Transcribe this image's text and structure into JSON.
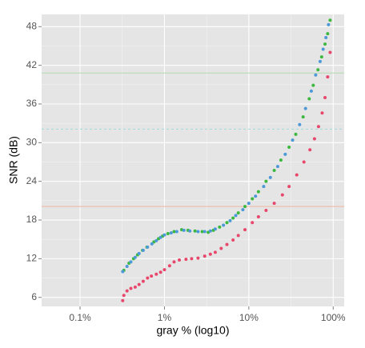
{
  "chart_data": {
    "type": "scatter",
    "xlabel": "gray % (log10)",
    "ylabel": "SNR (dB)",
    "xlog": true,
    "grid": true,
    "xlim": [
      0.035,
      135
    ],
    "ylim": [
      4.6,
      49.9
    ],
    "xticks": [
      {
        "value": 0.1,
        "label": "0.1%"
      },
      {
        "value": 1,
        "label": "1%"
      },
      {
        "value": 10,
        "label": "10%"
      },
      {
        "value": 100,
        "label": "100%"
      }
    ],
    "yticks": [
      6,
      12,
      18,
      24,
      30,
      36,
      42,
      48
    ],
    "hlines": [
      {
        "value": 40.8,
        "color": "#b7dcb7",
        "style": "solid"
      },
      {
        "value": 32.1,
        "color": "#a6dcdc",
        "style": "dashed"
      },
      {
        "value": 20.1,
        "color": "#efc0ad",
        "style": "solid"
      }
    ],
    "series": [
      {
        "color": "#e8476c",
        "x": [
          0.32,
          0.33,
          0.36,
          0.4,
          0.45,
          0.5,
          0.56,
          0.63,
          0.7,
          0.8,
          0.9,
          1,
          1.15,
          1.3,
          1.5,
          1.8,
          2.1,
          2.5,
          3,
          3.5,
          4,
          4.7,
          5.5,
          6.5,
          7.5,
          9,
          11,
          13,
          16,
          20,
          25,
          30,
          37,
          45,
          53,
          60,
          67,
          74,
          80,
          86,
          92
        ],
        "values": [
          5.5,
          6.3,
          7,
          7.4,
          7.6,
          8,
          8.5,
          9,
          9.3,
          9.6,
          9.9,
          10.3,
          10.9,
          11.5,
          11.8,
          11.9,
          12,
          12.1,
          12.4,
          12.7,
          13,
          13.6,
          14.2,
          14.9,
          15.6,
          16.5,
          17.6,
          18.5,
          19.5,
          20.6,
          21.9,
          23.2,
          25,
          27,
          28.9,
          30.6,
          32.5,
          34.6,
          37,
          40.2,
          44
        ]
      },
      {
        "color": "#3cb83f",
        "x": [
          0.33,
          0.38,
          0.43,
          0.48,
          0.55,
          0.62,
          0.75,
          0.85,
          0.95,
          1.1,
          1.3,
          1.6,
          1.9,
          2.3,
          2.8,
          3.3,
          3.8,
          4.5,
          5.5,
          6.5,
          7.5,
          9,
          11,
          13,
          16,
          20,
          24,
          30,
          36,
          44,
          52,
          58,
          66,
          73,
          80,
          86,
          92
        ],
        "values": [
          10.2,
          11.3,
          12,
          12.6,
          13.3,
          13.8,
          14.6,
          15.1,
          15.5,
          15.9,
          16.2,
          16.5,
          16.4,
          16.3,
          16.2,
          16.1,
          16.4,
          16.9,
          17.6,
          18.3,
          19.1,
          20.1,
          21.3,
          22.4,
          24,
          25.7,
          27.3,
          29.3,
          31.3,
          34,
          36.8,
          38.9,
          41.3,
          43.3,
          45.3,
          46.9,
          49
        ]
      },
      {
        "color": "#4c98d8",
        "x": [
          0.32,
          0.36,
          0.4,
          0.45,
          0.5,
          0.56,
          0.63,
          0.71,
          0.8,
          0.9,
          1,
          1.2,
          1.4,
          1.7,
          2,
          2.5,
          3,
          3.5,
          4,
          5,
          6,
          7,
          8.5,
          10,
          12,
          15,
          18,
          22,
          27,
          33,
          40,
          47,
          55,
          62,
          70,
          76,
          82,
          88
        ],
        "values": [
          10,
          10.8,
          11.5,
          12.2,
          12.8,
          13.3,
          13.8,
          14.3,
          14.8,
          15.3,
          15.7,
          16,
          16.2,
          16.4,
          16.3,
          16.2,
          16.2,
          16.3,
          16.6,
          17.2,
          17.9,
          18.7,
          19.6,
          20.6,
          21.7,
          23.2,
          24.6,
          26.3,
          28.2,
          30.4,
          32.8,
          35.3,
          38,
          40.5,
          42.6,
          44.5,
          46.3,
          48.3
        ]
      }
    ]
  }
}
